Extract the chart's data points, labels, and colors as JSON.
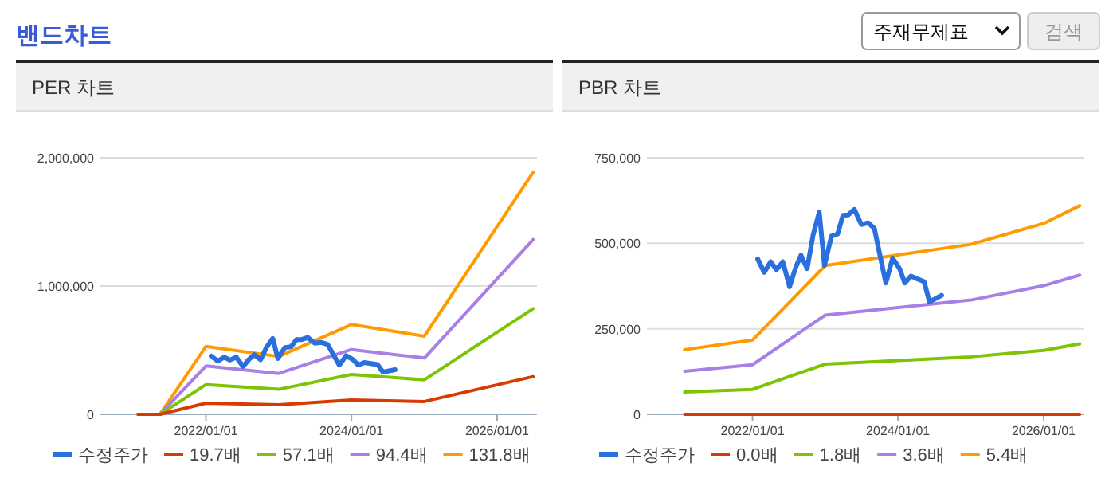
{
  "chart_data": [
    {
      "type": "other",
      "title": "밴드차트",
      "annotations": [
        "주재무제표",
        "검색"
      ]
    },
    {
      "type": "line",
      "title": "PER 차트",
      "grid": "y",
      "legend": "bottom",
      "xlim": [
        "2020-07-20",
        "2026-07-20"
      ],
      "ylim": [
        0,
        2000000
      ],
      "xticks": [
        {
          "value": "2022-01-01",
          "label": "2022/01/01"
        },
        {
          "value": "2024-01-01",
          "label": "2024/01/01"
        },
        {
          "value": "2026-01-01",
          "label": "2026/01/01"
        }
      ],
      "yticks": [
        0,
        {
          "value": 1000000,
          "label": "1,000,000"
        },
        {
          "value": 2000000,
          "label": "2,000,000"
        }
      ],
      "x": [
        "2021-01-25",
        "2021-05-15",
        "2022-01-01",
        "2023-01-01",
        "2024-01-01",
        "2025-01-01",
        "2026-07-01"
      ],
      "series": [
        {
          "name": "수정주가",
          "color": "#2b6fde",
          "x": [
            "2022-01-27",
            "2022-03-01",
            "2022-04-02",
            "2022-05-01",
            "2022-06-02",
            "2022-07-06",
            "2022-08-06",
            "2022-09-01",
            "2022-10-02",
            "2022-11-01",
            "2022-12-02",
            "2022-12-28",
            "2023-02-01",
            "2023-03-04",
            "2023-03-31",
            "2023-04-26",
            "2023-05-27",
            "2023-07-01",
            "2023-08-04",
            "2023-09-04",
            "2023-10-01",
            "2023-11-01",
            "2023-12-05",
            "2024-01-09",
            "2024-02-04",
            "2024-03-06",
            "2024-04-07",
            "2024-05-11",
            "2024-06-07",
            "2024-07-03",
            "2024-08-07"
          ],
          "values": [
            454000,
            415000,
            446000,
            423000,
            446000,
            373000,
            430000,
            465000,
            426000,
            524000,
            591000,
            435000,
            521000,
            527000,
            582000,
            583000,
            599000,
            555000,
            560000,
            544000,
            469000,
            384000,
            457000,
            426000,
            384000,
            404000,
            396000,
            388000,
            329000,
            337000,
            348000
          ]
        },
        {
          "name": "19.7배",
          "color": "#d63c00",
          "values": [
            0,
            0,
            87000,
            75000,
            112000,
            100000,
            294000
          ]
        },
        {
          "name": "57.1배",
          "color": "#7cc404",
          "values": [
            0,
            0,
            232000,
            195000,
            311000,
            269000,
            824000
          ]
        },
        {
          "name": "94.4배",
          "color": "#a77fe6",
          "values": [
            0,
            0,
            377000,
            319000,
            505000,
            439000,
            1362000
          ]
        },
        {
          "name": "131.8배",
          "color": "#ff9a00",
          "values": [
            0,
            0,
            530000,
            451000,
            700000,
            609000,
            1888000
          ]
        }
      ]
    },
    {
      "type": "line",
      "title": "PBR 차트",
      "grid": "y",
      "legend": "bottom",
      "xlim": [
        "2020-07-20",
        "2026-07-20"
      ],
      "ylim": [
        0,
        750000
      ],
      "xticks": [
        {
          "value": "2022-01-01",
          "label": "2022/01/01"
        },
        {
          "value": "2024-01-01",
          "label": "2024/01/01"
        },
        {
          "value": "2026-01-01",
          "label": "2026/01/01"
        }
      ],
      "yticks": [
        0,
        {
          "value": 250000,
          "label": "250,000"
        },
        {
          "value": 500000,
          "label": "500,000"
        },
        {
          "value": 750000,
          "label": "750,000"
        }
      ],
      "x": [
        "2021-01-25",
        "2022-01-01",
        "2023-01-01",
        "2025-01-01",
        "2026-01-01",
        "2026-07-01"
      ],
      "series": [
        {
          "name": "수정주가",
          "color": "#2b6fde",
          "x": [
            "2022-01-27",
            "2022-03-01",
            "2022-04-02",
            "2022-05-01",
            "2022-06-02",
            "2022-07-06",
            "2022-08-06",
            "2022-09-01",
            "2022-10-02",
            "2022-11-01",
            "2022-12-02",
            "2022-12-28",
            "2023-02-01",
            "2023-03-04",
            "2023-03-31",
            "2023-04-26",
            "2023-05-27",
            "2023-07-01",
            "2023-08-04",
            "2023-09-04",
            "2023-10-01",
            "2023-11-01",
            "2023-12-05",
            "2024-01-09",
            "2024-02-04",
            "2024-03-06",
            "2024-04-07",
            "2024-05-11",
            "2024-06-07",
            "2024-07-03",
            "2024-08-07"
          ],
          "values": [
            454000,
            415000,
            446000,
            423000,
            446000,
            373000,
            430000,
            465000,
            426000,
            524000,
            591000,
            435000,
            521000,
            527000,
            582000,
            583000,
            599000,
            555000,
            560000,
            544000,
            469000,
            384000,
            457000,
            426000,
            384000,
            404000,
            396000,
            388000,
            329000,
            337000,
            348000
          ]
        },
        {
          "name": "0.0배",
          "color": "#d63c00",
          "values": [
            0,
            0,
            0,
            0,
            0,
            0
          ]
        },
        {
          "name": "1.8배",
          "color": "#7cc404",
          "values": [
            65000,
            73000,
            147000,
            168000,
            187000,
            206000
          ]
        },
        {
          "name": "3.6배",
          "color": "#a77fe6",
          "values": [
            126000,
            145000,
            290000,
            334000,
            376000,
            407000
          ]
        },
        {
          "name": "5.4배",
          "color": "#ff9a00",
          "values": [
            189000,
            217000,
            435000,
            497000,
            558000,
            610000
          ]
        }
      ]
    }
  ]
}
